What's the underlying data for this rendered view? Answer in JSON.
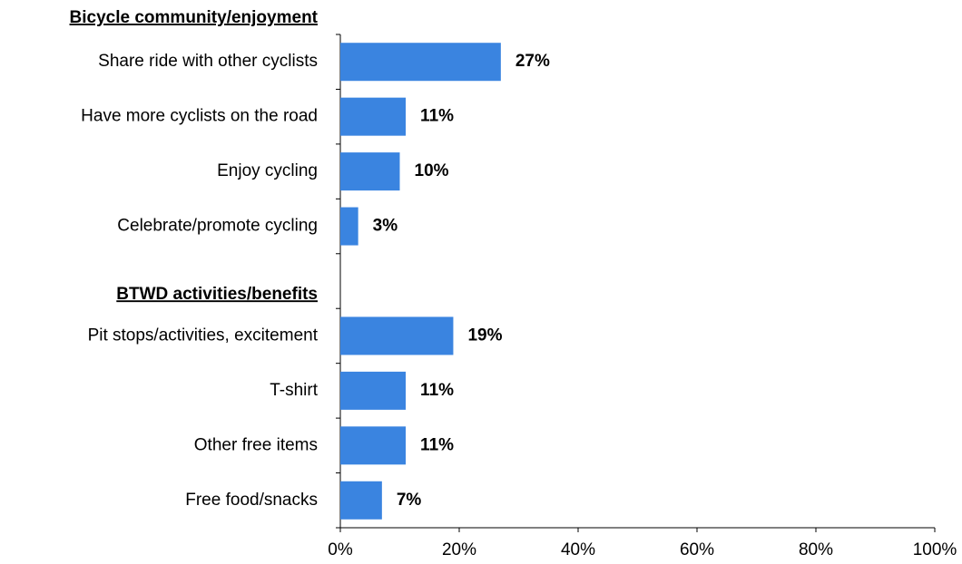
{
  "chart_data": {
    "type": "bar",
    "orientation": "horizontal",
    "color": "#3a84e0",
    "groups": [
      {
        "name": "Bicycle community/enjoyment",
        "categories": [
          "Share ride with other cyclists",
          "Have more cyclists on the road",
          "Enjoy cycling",
          "Celebrate/promote cycling"
        ],
        "values": [
          27,
          11,
          10,
          3
        ],
        "value_labels": [
          "27%",
          "11%",
          "10%",
          "3%"
        ]
      },
      {
        "name": "BTWD activities/benefits",
        "categories": [
          "Pit stops/activities, excitement",
          "T-shirt",
          "Other free items",
          "Free food/snacks"
        ],
        "values": [
          19,
          11,
          11,
          7
        ],
        "value_labels": [
          "19%",
          "11%",
          "11%",
          "7%"
        ]
      }
    ],
    "xlim": [
      0,
      100
    ],
    "xticks": [
      {
        "value": 0,
        "label": "0%"
      },
      {
        "value": 20,
        "label": "20%"
      },
      {
        "value": 40,
        "label": "40%"
      },
      {
        "value": 60,
        "label": "60%"
      },
      {
        "value": 80,
        "label": "80%"
      },
      {
        "value": 100,
        "label": "100%"
      }
    ]
  }
}
